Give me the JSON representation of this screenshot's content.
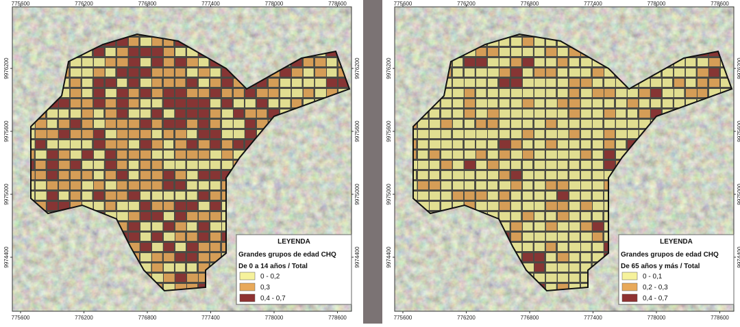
{
  "maps": [
    {
      "x_ticks": [
        "775600",
        "776200",
        "776800",
        "777400",
        "778000",
        "778600"
      ],
      "y_ticks": [
        "9976200",
        "9975600",
        "9975000",
        "9974400"
      ],
      "legend": {
        "heading": "LEYENDA",
        "title": "Grandes grupos de edad CHQ",
        "subtitle": "De 0 a 14 años / Total",
        "items": [
          {
            "label": "0 - 0,2",
            "color": "#f6f29c"
          },
          {
            "label": "0,3",
            "color": "#e8a95a"
          },
          {
            "label": "0,4 - 0,7",
            "color": "#8e3232"
          }
        ]
      }
    },
    {
      "x_ticks": [
        "775600",
        "776200",
        "776800",
        "777400",
        "778000",
        "778600"
      ],
      "y_ticks": [
        "9976200",
        "9975600",
        "9975000",
        "9974400"
      ],
      "legend": {
        "heading": "LEYENDA",
        "title": "Grandes grupos de edad CHQ",
        "subtitle": "De 65 años y más / Total",
        "items": [
          {
            "label": "0 - 0,1",
            "color": "#f6f29c"
          },
          {
            "label": "0,2 - 0,3",
            "color": "#e8a95a"
          },
          {
            "label": "0,4 - 0,7",
            "color": "#8e3232"
          }
        ]
      }
    }
  ]
}
